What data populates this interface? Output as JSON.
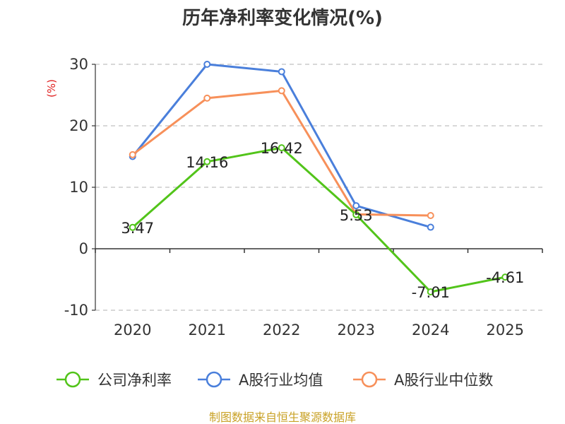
{
  "chart_data": {
    "type": "line",
    "title": "历年净利率变化情况(%)",
    "ylabel": "(%)",
    "xlabel": "",
    "categories": [
      "2020",
      "2021",
      "2022",
      "2023",
      "2024",
      "2025"
    ],
    "ylim": [
      -10,
      30
    ],
    "yticks": [
      "30",
      "20",
      "10",
      "0",
      "-10"
    ],
    "grid": true,
    "legend_position": "bottom",
    "series": [
      {
        "name": "公司净利率",
        "color": "#52c41a",
        "values": [
          3.47,
          14.16,
          16.42,
          5.53,
          -7.01,
          -4.61
        ],
        "labels": [
          "3.47",
          "14.16",
          "16.42",
          "5.53",
          "-7.01",
          "-4.61"
        ]
      },
      {
        "name": "A股行业均值",
        "color": "#4a7fdb",
        "values": [
          15.0,
          30.0,
          28.8,
          7.0,
          3.5,
          null
        ]
      },
      {
        "name": "A股行业中位数",
        "color": "#f7905a",
        "values": [
          15.3,
          24.5,
          25.7,
          5.6,
          5.4,
          null
        ]
      }
    ]
  },
  "ui": {
    "unit_color": "#e02020",
    "source_text": "制图数据来自恒生聚源数据库",
    "source_color": "#c9a227"
  }
}
